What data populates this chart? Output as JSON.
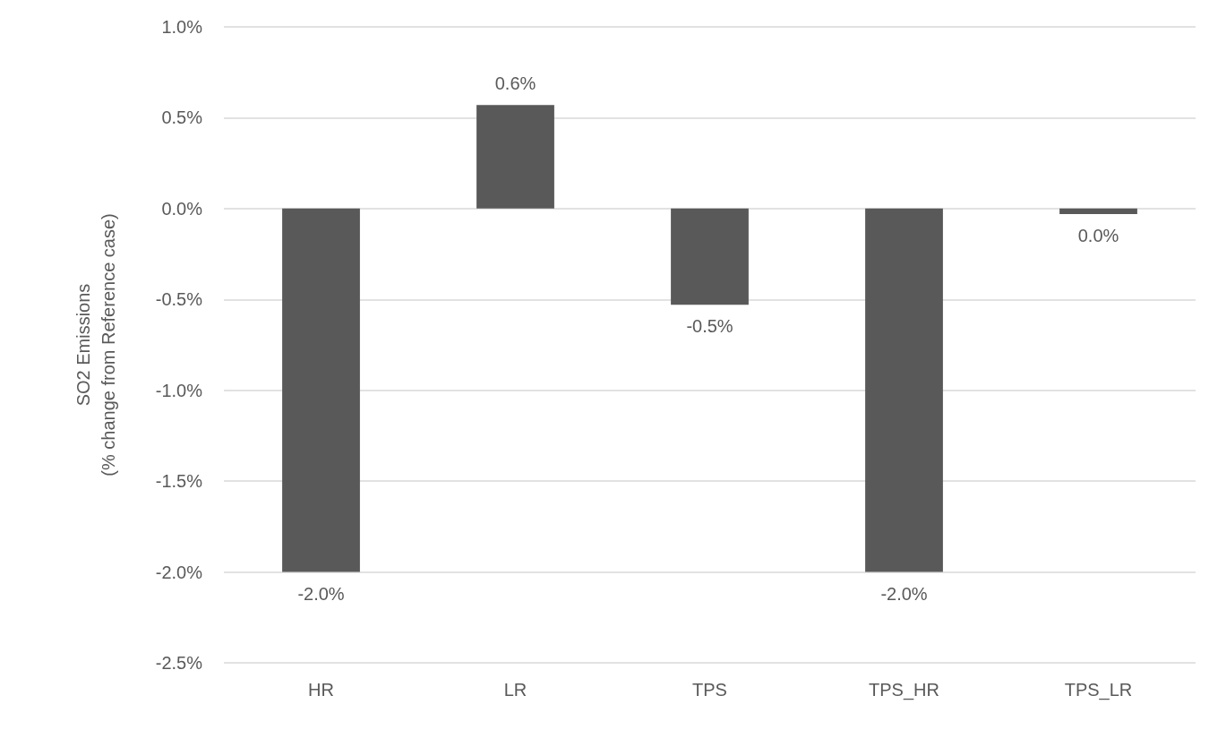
{
  "chart_data": {
    "type": "bar",
    "ylabel": "SO2 Emissions\n(% change from Reference case)",
    "categories": [
      "HR",
      "LR",
      "TPS",
      "TPS_HR",
      "TPS_LR"
    ],
    "values": [
      -2.0,
      0.57,
      -0.53,
      -2.0,
      -0.03
    ],
    "value_labels": [
      "-2.0%",
      "0.6%",
      "-0.5%",
      "-2.0%",
      "0.0%"
    ],
    "color": "#595959",
    "ylim": [
      -2.5,
      1.0
    ],
    "yticks": [
      {
        "value": -2.5,
        "label": "-2.5%"
      },
      {
        "value": -2.0,
        "label": "-2.0%"
      },
      {
        "value": -1.5,
        "label": "-1.5%"
      },
      {
        "value": -1.0,
        "label": "-1.0%"
      },
      {
        "value": -0.5,
        "label": "-0.5%"
      },
      {
        "value": 0,
        "label": "0.0%"
      },
      {
        "value": 0.5,
        "label": "0.5%"
      },
      {
        "value": 1.0,
        "label": "1.0%"
      }
    ],
    "grid": "y"
  }
}
